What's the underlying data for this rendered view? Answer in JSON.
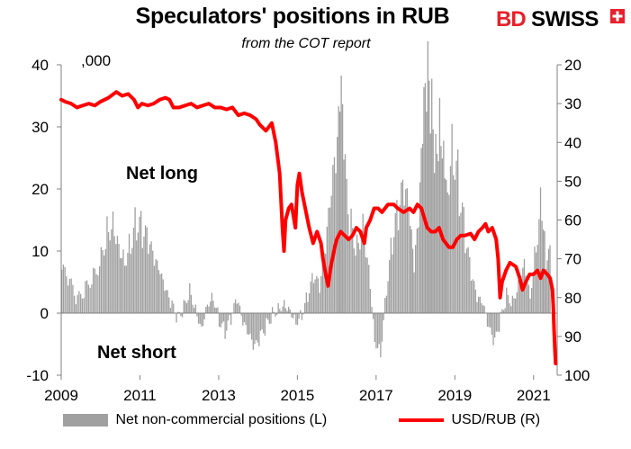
{
  "header": {
    "title": "Speculators' positions in RUB",
    "subtitle": "from the COT report",
    "logo_bd": "BD",
    "logo_swiss": "SWISS"
  },
  "annotations": {
    "units": ",000",
    "net_long": "Net long",
    "net_short": "Net short"
  },
  "colors": {
    "bars": "#a0a0a0",
    "line": "#ff0000",
    "brand_red": "#e8202a",
    "axis": "#808080"
  },
  "chart_data": {
    "type": "bar",
    "legend_position": "bottom",
    "grid": false,
    "x_axis": {
      "range": [
        2009.0,
        2021.6
      ],
      "ticks": [
        2009,
        2011,
        2013,
        2015,
        2017,
        2019,
        2021
      ],
      "tick_labels": [
        "2009",
        "2011",
        "2013",
        "2015",
        "2017",
        "2019",
        "2021"
      ]
    },
    "y_left": {
      "range": [
        -10,
        40
      ],
      "ticks": [
        -10,
        0,
        10,
        20,
        30,
        40
      ],
      "tick_labels": [
        "-10",
        "0",
        "10",
        "20",
        "30",
        "40"
      ]
    },
    "y_right": {
      "range": [
        20,
        100
      ],
      "inverted": true,
      "ticks": [
        20,
        30,
        40,
        50,
        60,
        70,
        80,
        90,
        100
      ],
      "tick_labels": [
        "20",
        "30",
        "40",
        "50",
        "60",
        "70",
        "80",
        "90",
        "100"
      ]
    },
    "series": [
      {
        "name": "Net non-commercial positions (L)",
        "type": "bar",
        "axis": "left",
        "points": [
          [
            2009.0,
            7
          ],
          [
            2009.2,
            5
          ],
          [
            2009.4,
            2
          ],
          [
            2009.6,
            4
          ],
          [
            2009.8,
            6
          ],
          [
            2010.0,
            9
          ],
          [
            2010.15,
            14
          ],
          [
            2010.3,
            16
          ],
          [
            2010.45,
            12
          ],
          [
            2010.6,
            9
          ],
          [
            2010.75,
            12
          ],
          [
            2010.9,
            15
          ],
          [
            2011.05,
            13
          ],
          [
            2011.2,
            11
          ],
          [
            2011.35,
            8
          ],
          [
            2011.5,
            6
          ],
          [
            2011.65,
            3
          ],
          [
            2011.8,
            1
          ],
          [
            2011.95,
            -1
          ],
          [
            2012.1,
            1
          ],
          [
            2012.25,
            4
          ],
          [
            2012.4,
            1
          ],
          [
            2012.55,
            -2
          ],
          [
            2012.7,
            2
          ],
          [
            2012.85,
            3
          ],
          [
            2013.0,
            -1
          ],
          [
            2013.15,
            -3
          ],
          [
            2013.3,
            -1
          ],
          [
            2013.45,
            2
          ],
          [
            2013.6,
            -2
          ],
          [
            2013.75,
            -4
          ],
          [
            2013.9,
            -6
          ],
          [
            2014.05,
            -4
          ],
          [
            2014.2,
            -2
          ],
          [
            2014.35,
            0
          ],
          [
            2014.5,
            1
          ],
          [
            2014.65,
            2
          ],
          [
            2014.8,
            1
          ],
          [
            2014.95,
            -1
          ],
          [
            2015.1,
            0
          ],
          [
            2015.25,
            3
          ],
          [
            2015.4,
            6
          ],
          [
            2015.55,
            4
          ],
          [
            2015.7,
            10
          ],
          [
            2015.85,
            18
          ],
          [
            2016.0,
            25
          ],
          [
            2016.1,
            32
          ],
          [
            2016.2,
            21
          ],
          [
            2016.35,
            14
          ],
          [
            2016.5,
            11
          ],
          [
            2016.65,
            15
          ],
          [
            2016.8,
            8
          ],
          [
            2016.95,
            -4
          ],
          [
            2017.1,
            -6
          ],
          [
            2017.25,
            4
          ],
          [
            2017.4,
            12
          ],
          [
            2017.55,
            16
          ],
          [
            2017.7,
            19
          ],
          [
            2017.85,
            14
          ],
          [
            2017.95,
            6
          ],
          [
            2018.1,
            18
          ],
          [
            2018.2,
            30
          ],
          [
            2018.3,
            36
          ],
          [
            2018.4,
            32
          ],
          [
            2018.5,
            26
          ],
          [
            2018.6,
            34
          ],
          [
            2018.7,
            30
          ],
          [
            2018.8,
            23
          ],
          [
            2018.95,
            28
          ],
          [
            2019.1,
            20
          ],
          [
            2019.25,
            12
          ],
          [
            2019.4,
            6
          ],
          [
            2019.55,
            2
          ],
          [
            2019.7,
            1
          ],
          [
            2019.85,
            -3
          ],
          [
            2020.0,
            -5
          ],
          [
            2020.15,
            -1
          ],
          [
            2020.3,
            3
          ],
          [
            2020.45,
            2
          ],
          [
            2020.6,
            5
          ],
          [
            2020.75,
            9
          ],
          [
            2020.9,
            3
          ],
          [
            2021.05,
            12
          ],
          [
            2021.2,
            19
          ],
          [
            2021.3,
            9
          ]
        ]
      },
      {
        "name": "USD/RUB (R)",
        "type": "line",
        "axis": "right",
        "points": [
          [
            2009.0,
            29
          ],
          [
            2009.1,
            29.5
          ],
          [
            2009.25,
            30
          ],
          [
            2009.4,
            31
          ],
          [
            2009.55,
            30.5
          ],
          [
            2009.7,
            30
          ],
          [
            2009.85,
            30.5
          ],
          [
            2010.0,
            29.5
          ],
          [
            2010.2,
            28.5
          ],
          [
            2010.4,
            27
          ],
          [
            2010.55,
            28
          ],
          [
            2010.7,
            27.5
          ],
          [
            2010.85,
            29
          ],
          [
            2010.95,
            31
          ],
          [
            2011.05,
            30
          ],
          [
            2011.2,
            30.5
          ],
          [
            2011.35,
            30
          ],
          [
            2011.5,
            29
          ],
          [
            2011.65,
            28.5
          ],
          [
            2011.75,
            29
          ],
          [
            2011.85,
            31
          ],
          [
            2012.0,
            31
          ],
          [
            2012.15,
            30.5
          ],
          [
            2012.3,
            30
          ],
          [
            2012.45,
            31
          ],
          [
            2012.6,
            30.5
          ],
          [
            2012.75,
            30
          ],
          [
            2012.9,
            31
          ],
          [
            2013.05,
            31
          ],
          [
            2013.2,
            31.5
          ],
          [
            2013.35,
            31
          ],
          [
            2013.5,
            33
          ],
          [
            2013.65,
            32.5
          ],
          [
            2013.8,
            33
          ],
          [
            2013.95,
            34
          ],
          [
            2014.05,
            35.5
          ],
          [
            2014.2,
            37
          ],
          [
            2014.35,
            35
          ],
          [
            2014.45,
            40
          ],
          [
            2014.55,
            48
          ],
          [
            2014.62,
            62
          ],
          [
            2014.66,
            68
          ],
          [
            2014.7,
            60
          ],
          [
            2014.78,
            57
          ],
          [
            2014.85,
            56
          ],
          [
            2014.95,
            62
          ],
          [
            2015.0,
            51
          ],
          [
            2015.05,
            48
          ],
          [
            2015.12,
            53
          ],
          [
            2015.2,
            57
          ],
          [
            2015.3,
            62
          ],
          [
            2015.4,
            66
          ],
          [
            2015.5,
            63
          ],
          [
            2015.6,
            66
          ],
          [
            2015.65,
            70
          ],
          [
            2015.72,
            74
          ],
          [
            2015.78,
            77
          ],
          [
            2015.85,
            72
          ],
          [
            2015.95,
            67
          ],
          [
            2016.0,
            65
          ],
          [
            2016.1,
            63
          ],
          [
            2016.2,
            64
          ],
          [
            2016.3,
            65
          ],
          [
            2016.4,
            64
          ],
          [
            2016.5,
            62
          ],
          [
            2016.6,
            63
          ],
          [
            2016.7,
            66
          ],
          [
            2016.75,
            62
          ],
          [
            2016.85,
            60
          ],
          [
            2016.95,
            57
          ],
          [
            2017.05,
            57
          ],
          [
            2017.15,
            58
          ],
          [
            2017.3,
            56
          ],
          [
            2017.45,
            56
          ],
          [
            2017.55,
            57
          ],
          [
            2017.7,
            58
          ],
          [
            2017.85,
            57
          ],
          [
            2017.95,
            58
          ],
          [
            2018.05,
            56
          ],
          [
            2018.15,
            57
          ],
          [
            2018.3,
            62
          ],
          [
            2018.4,
            63
          ],
          [
            2018.5,
            63
          ],
          [
            2018.6,
            62
          ],
          [
            2018.7,
            65
          ],
          [
            2018.85,
            67
          ],
          [
            2018.95,
            67
          ],
          [
            2019.05,
            65
          ],
          [
            2019.15,
            64
          ],
          [
            2019.25,
            64
          ],
          [
            2019.4,
            63.5
          ],
          [
            2019.5,
            65
          ],
          [
            2019.6,
            63
          ],
          [
            2019.7,
            62
          ],
          [
            2019.78,
            61
          ],
          [
            2019.85,
            63
          ],
          [
            2019.95,
            62
          ],
          [
            2020.05,
            65
          ],
          [
            2020.1,
            70
          ],
          [
            2020.15,
            80
          ],
          [
            2020.2,
            76
          ],
          [
            2020.3,
            73
          ],
          [
            2020.4,
            71
          ],
          [
            2020.55,
            72
          ],
          [
            2020.65,
            75
          ],
          [
            2020.72,
            78
          ],
          [
            2020.8,
            76
          ],
          [
            2020.9,
            74
          ],
          [
            2021.0,
            74
          ],
          [
            2021.1,
            73
          ],
          [
            2021.18,
            75
          ],
          [
            2021.25,
            73
          ],
          [
            2021.35,
            74
          ],
          [
            2021.42,
            75
          ],
          [
            2021.48,
            78
          ],
          [
            2021.5,
            82
          ],
          [
            2021.52,
            88
          ],
          [
            2021.54,
            93
          ],
          [
            2021.56,
            97
          ]
        ]
      }
    ]
  }
}
